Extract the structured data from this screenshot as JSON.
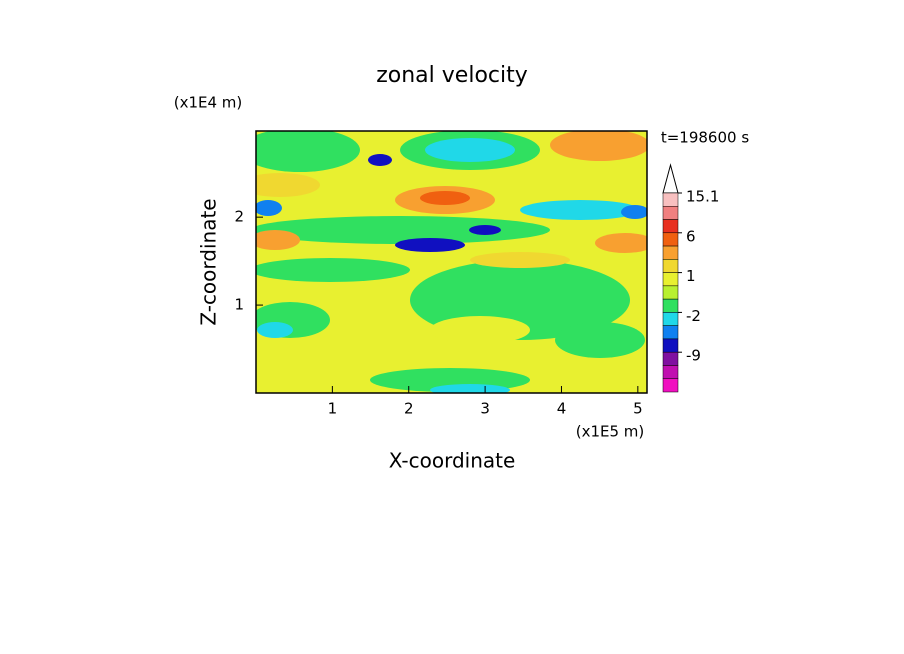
{
  "chart_data": {
    "type": "contour",
    "title": "zonal velocity",
    "x_label": "X-coordinate",
    "y_label": "Z-coordinate",
    "x_unit": "(x1E5 m)",
    "y_unit": "(x1E4 m)",
    "time_label": "t=198600 s",
    "xlim": [
      0,
      5.12
    ],
    "ylim": [
      0,
      2.98
    ],
    "xticks": [
      1,
      2,
      3,
      4,
      5
    ],
    "yticks": [
      1,
      2
    ],
    "colorbar": {
      "levels": [
        15.1,
        12,
        9,
        6,
        4,
        2,
        1,
        0,
        -1,
        -2,
        -4,
        -6,
        -9,
        -12
      ],
      "colors": [
        "#ffffff",
        "#f8c0c0",
        "#f08080",
        "#e83020",
        "#f06010",
        "#f8a030",
        "#f0d830",
        "#e8f030",
        "#b8f030",
        "#30e060",
        "#20d8e8",
        "#1080f0",
        "#1010c0",
        "#8010a0",
        "#c010b0",
        "#f010c0"
      ],
      "ticks": [
        15.1,
        6,
        1,
        -2,
        -9
      ]
    }
  }
}
